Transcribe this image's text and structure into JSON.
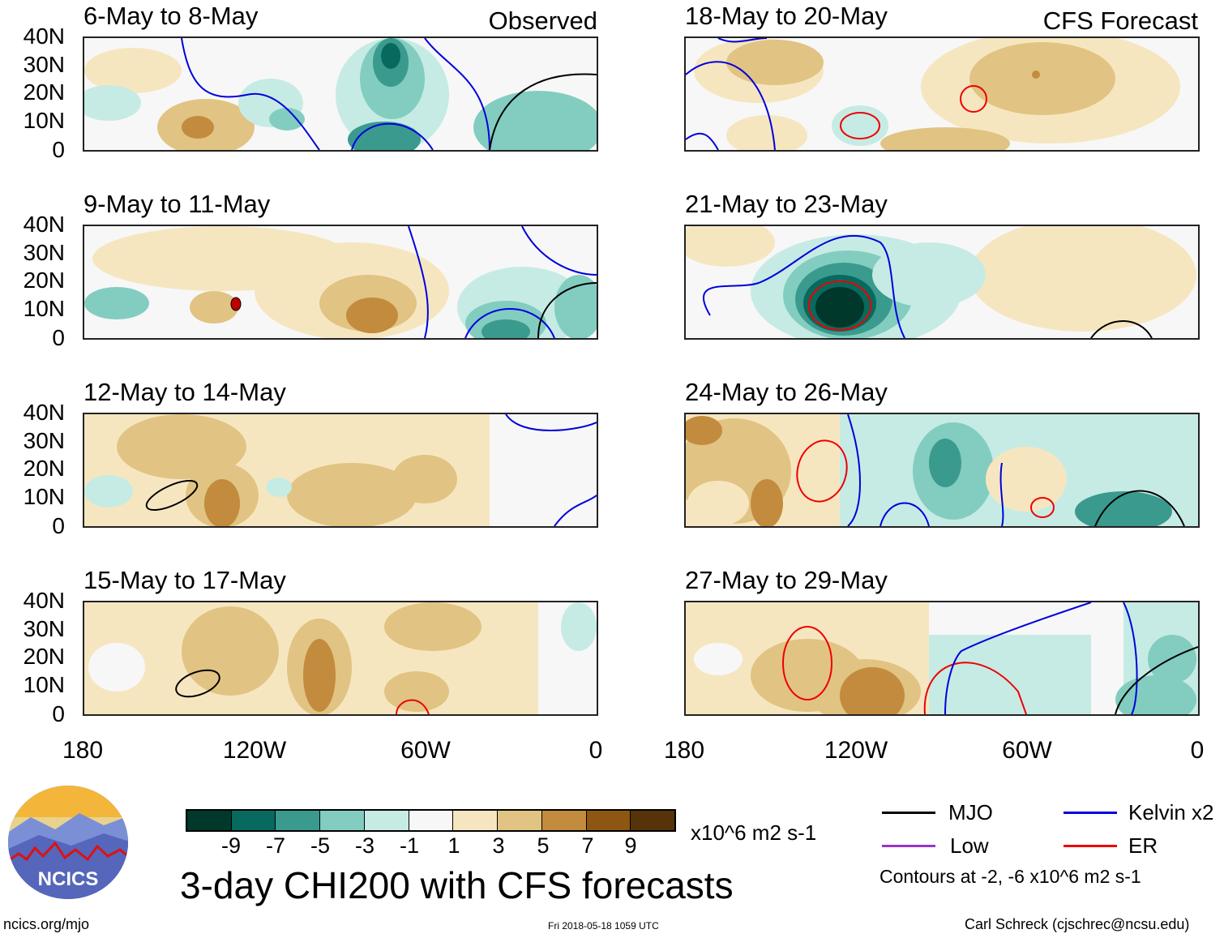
{
  "panels": [
    {
      "title": "6-May to 8-May",
      "tag": "Observed"
    },
    {
      "title": "9-May to 11-May",
      "tag": ""
    },
    {
      "title": "12-May to 14-May",
      "tag": ""
    },
    {
      "title": "15-May to 17-May",
      "tag": ""
    },
    {
      "title": "18-May to 20-May",
      "tag": "CFS Forecast"
    },
    {
      "title": "21-May to 23-May",
      "tag": ""
    },
    {
      "title": "24-May to 26-May",
      "tag": ""
    },
    {
      "title": "27-May to 29-May",
      "tag": ""
    }
  ],
  "y_ticks": [
    "40N",
    "30N",
    "20N",
    "10N",
    "0"
  ],
  "x_ticks": [
    "180",
    "120W",
    "60W",
    "0"
  ],
  "colorbar": {
    "ticks": [
      "-9",
      "-7",
      "-5",
      "-3",
      "-1",
      "1",
      "3",
      "5",
      "7",
      "9"
    ],
    "units": "x10^6 m2 s-1",
    "colors": [
      "#00382c",
      "#086a5e",
      "#3a9a8e",
      "#82cdc0",
      "#c6ebe4",
      "#f7f7f7",
      "#f6e6c0",
      "#e1c383",
      "#c38b3e",
      "#8e5613",
      "#563308"
    ]
  },
  "legend": {
    "items": [
      {
        "label": "MJO",
        "color": "#000000"
      },
      {
        "label": "Kelvin x2",
        "color": "#0000dd"
      },
      {
        "label": "Low",
        "color": "#9933cc"
      },
      {
        "label": "ER",
        "color": "#ee0000"
      }
    ],
    "note": "Contours at -2, -6 x10^6 m2 s-1"
  },
  "main_title": "3-day CHI200 with CFS forecasts",
  "logo_text": "NCICS",
  "footer": {
    "left": "ncics.org/mjo",
    "center": "Fri 2018-05-18 1059 UTC",
    "right": "Carl Schreck (cjschrec@ncsu.edu)"
  }
}
